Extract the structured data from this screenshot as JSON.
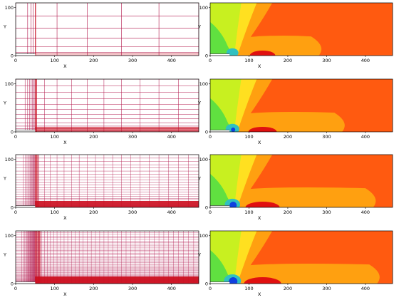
{
  "panels": [
    {
      "mesh": {
        "y_label": "Y",
        "y_ticks": [
          "0",
          "100"
        ],
        "x_label": "X",
        "x_ticks": [
          "0",
          "100",
          "200",
          "300",
          "400"
        ]
      },
      "contour": {
        "y_label": "Y",
        "y_ticks": [
          "0",
          "100"
        ],
        "x_label": "X",
        "x_ticks": [
          "0",
          "100",
          "200",
          "300",
          "400"
        ]
      }
    },
    {
      "mesh": {
        "y_label": "Y",
        "y_ticks": [
          "0",
          "100"
        ],
        "x_label": "X",
        "x_ticks": [
          "0",
          "100",
          "200",
          "300",
          "400"
        ]
      },
      "contour": {
        "y_label": "Y",
        "y_ticks": [
          "0",
          "100"
        ],
        "x_label": "X",
        "x_ticks": [
          "0",
          "100",
          "200",
          "300",
          "400"
        ]
      }
    },
    {
      "mesh": {
        "y_label": "Y",
        "y_ticks": [
          "0",
          "100"
        ],
        "x_label": "X",
        "x_ticks": [
          "0",
          "100",
          "200",
          "300",
          "400"
        ]
      },
      "contour": {
        "y_label": "Y",
        "y_ticks": [
          "0",
          "100"
        ],
        "x_label": "X",
        "x_ticks": [
          "0",
          "100",
          "200",
          "300",
          "400"
        ]
      }
    },
    {
      "mesh": {
        "y_label": "Y",
        "y_ticks": [
          "0",
          "100"
        ],
        "x_label": "X",
        "x_ticks": [
          "0",
          "100",
          "200",
          "300",
          "400"
        ]
      },
      "contour": {
        "y_label": "Y",
        "y_ticks": [
          "0",
          "100"
        ],
        "x_label": "X",
        "x_ticks": [
          "0",
          "100",
          "200",
          "300",
          "400"
        ]
      }
    }
  ],
  "colors": {
    "mesh_line": "#b0144a",
    "mesh_dense": "#cc1020",
    "contour_far": "#ff5a10",
    "contour_mid": "#ffa010",
    "contour_yellow": "#ffe020",
    "contour_lime": "#c8f020",
    "contour_green": "#60e040",
    "contour_cyan": "#30c0c0",
    "contour_blue": "#1040e0",
    "contour_red": "#e01010"
  }
}
